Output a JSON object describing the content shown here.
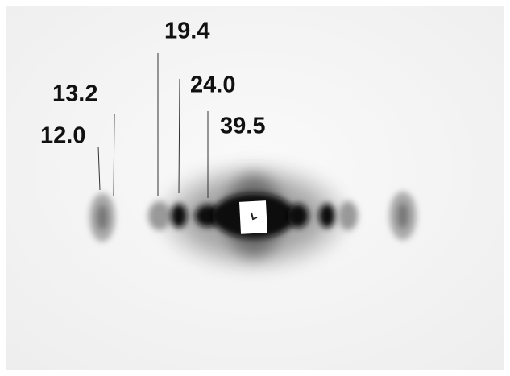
{
  "labels": [
    "12.0",
    "13.2",
    "19.4",
    "24.0",
    "39.5"
  ]
}
